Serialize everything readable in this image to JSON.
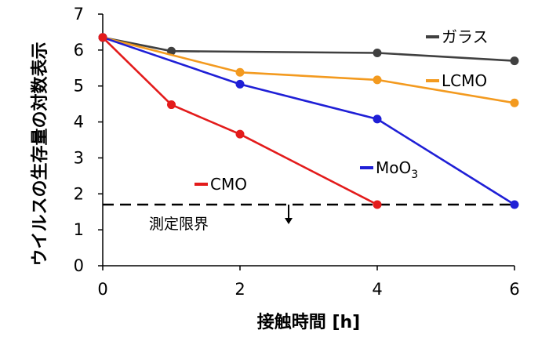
{
  "chart_data": {
    "type": "line",
    "xlabel": "接触時間 [h]",
    "ylabel": "ウイルスの生存量の対数表示",
    "xlim": [
      0,
      6
    ],
    "ylim": [
      0,
      7
    ],
    "x_ticks": [
      0,
      2,
      4,
      6
    ],
    "y_ticks": [
      0,
      1,
      2,
      3,
      4,
      5,
      6,
      7
    ],
    "grid": false,
    "series": [
      {
        "name": "ガラス",
        "color": "#404040",
        "x": [
          0,
          1,
          4,
          6
        ],
        "y": [
          6.35,
          5.97,
          5.92,
          5.7
        ]
      },
      {
        "name": "LCMO",
        "color": "#f39a1f",
        "x": [
          0,
          2,
          4,
          6
        ],
        "y": [
          6.35,
          5.38,
          5.17,
          4.53
        ]
      },
      {
        "name": "MoO",
        "name_subscript": "3",
        "color": "#1f1fd6",
        "x": [
          0,
          2,
          4,
          6
        ],
        "y": [
          6.35,
          5.05,
          4.08,
          1.7
        ]
      },
      {
        "name": "CMO",
        "color": "#e31b1b",
        "x": [
          0,
          1,
          2,
          4
        ],
        "y": [
          6.35,
          4.48,
          3.66,
          1.7
        ]
      }
    ],
    "detection_limit": {
      "label": "測定限界",
      "y": 1.7
    }
  }
}
